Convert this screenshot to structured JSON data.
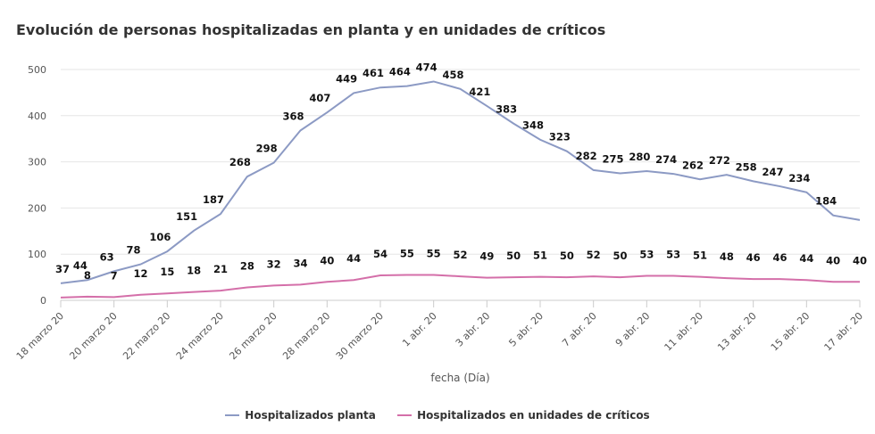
{
  "chart_data": {
    "type": "line",
    "title": "Evolución de personas hospitalizadas en planta y en unidades de críticos",
    "xlabel": "fecha (Día)",
    "ylabel": "",
    "ylim": [
      0,
      500
    ],
    "yticks": [
      0,
      100,
      200,
      300,
      400,
      500
    ],
    "x": [
      "18 marzo 20",
      "19 marzo 20",
      "20 marzo 20",
      "21 marzo 20",
      "22 marzo 20",
      "23 marzo 20",
      "24 marzo 20",
      "25 marzo 20",
      "26 marzo 20",
      "27 marzo 20",
      "28 marzo 20",
      "29 marzo 20",
      "30 marzo 20",
      "31 marzo 20",
      "1 abr. 20",
      "2 abr. 20",
      "3 abr. 20",
      "4 abr. 20",
      "5 abr. 20",
      "6 abr. 20",
      "7 abr. 20",
      "8 abr. 20",
      "9 abr. 20",
      "10 abr. 20",
      "11 abr. 20",
      "12 abr. 20",
      "13 abr. 20",
      "14 abr. 20",
      "15 abr. 20",
      "16 abr. 20",
      "17 abr. 20"
    ],
    "tick_labels": [
      "18 marzo 20",
      "20 marzo 20",
      "22 marzo 20",
      "24 marzo 20",
      "26 marzo 20",
      "28 marzo 20",
      "30 marzo 20",
      "1 abr. 20",
      "3 abr. 20",
      "5 abr. 20",
      "7 abr. 20",
      "9 abr. 20",
      "11 abr. 20",
      "13 abr. 20",
      "15 abr. 20",
      "17 abr. 20"
    ],
    "series": [
      {
        "name": "Hospitalizados planta",
        "color": "#8c9ac4",
        "values": [
          37,
          44,
          63,
          78,
          106,
          151,
          187,
          268,
          298,
          368,
          407,
          449,
          461,
          464,
          474,
          458,
          421,
          383,
          348,
          323,
          282,
          275,
          280,
          274,
          262,
          272,
          258,
          247,
          234,
          184,
          174
        ],
        "labeled": [
          true,
          true,
          true,
          true,
          true,
          true,
          true,
          true,
          true,
          true,
          true,
          true,
          true,
          true,
          true,
          true,
          true,
          true,
          true,
          true,
          true,
          true,
          true,
          true,
          true,
          true,
          true,
          true,
          true,
          true,
          false
        ]
      },
      {
        "name": "Hospitalizados en unidades de críticos",
        "color": "#d46fa9",
        "values": [
          6,
          8,
          7,
          12,
          15,
          18,
          21,
          28,
          32,
          34,
          40,
          44,
          54,
          55,
          55,
          52,
          49,
          50,
          51,
          50,
          52,
          50,
          53,
          53,
          51,
          48,
          46,
          46,
          44,
          40,
          40
        ],
        "labeled": [
          false,
          true,
          true,
          true,
          true,
          true,
          true,
          true,
          true,
          true,
          true,
          true,
          true,
          true,
          true,
          true,
          true,
          true,
          true,
          true,
          true,
          true,
          true,
          true,
          true,
          true,
          true,
          true,
          true,
          true,
          true
        ]
      }
    ],
    "legend": "bottom-center",
    "grid": true
  }
}
